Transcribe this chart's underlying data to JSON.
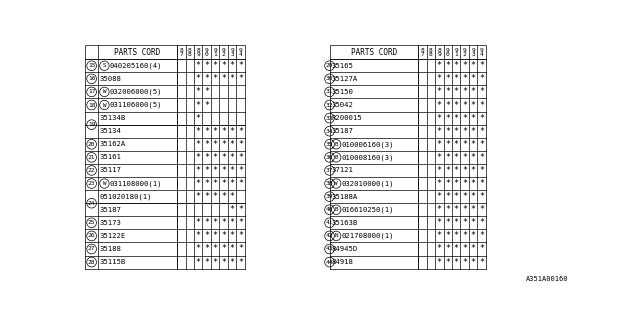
{
  "watermark": "A351A00160",
  "col_headers": [
    "87",
    "88",
    "89",
    "90",
    "91",
    "92",
    "93",
    "94"
  ],
  "left_table": {
    "has_num_col": true,
    "rows": [
      {
        "num": "15",
        "part": "S 040205160(4)",
        "part_prefix": "S",
        "marks": [
          false,
          false,
          true,
          true,
          true,
          true,
          true,
          true
        ]
      },
      {
        "num": "16",
        "part": "35088",
        "part_prefix": "",
        "marks": [
          false,
          false,
          true,
          true,
          true,
          true,
          true,
          true
        ]
      },
      {
        "num": "17",
        "part": "W 032006000(5)",
        "part_prefix": "W",
        "marks": [
          false,
          false,
          true,
          true,
          false,
          false,
          false,
          false
        ]
      },
      {
        "num": "18",
        "part": "W 031106000(5)",
        "part_prefix": "W",
        "marks": [
          false,
          false,
          true,
          true,
          false,
          false,
          false,
          false
        ]
      },
      {
        "num": "19",
        "part": "35134B",
        "part_prefix": "",
        "marks": [
          false,
          false,
          true,
          false,
          false,
          false,
          false,
          false
        ],
        "group_start": true
      },
      {
        "num": "",
        "part": "35134",
        "part_prefix": "",
        "marks": [
          false,
          false,
          true,
          true,
          true,
          true,
          true,
          true
        ],
        "group_end": true
      },
      {
        "num": "20",
        "part": "35162A",
        "part_prefix": "",
        "marks": [
          false,
          false,
          true,
          true,
          true,
          true,
          true,
          true
        ]
      },
      {
        "num": "21",
        "part": "35161",
        "part_prefix": "",
        "marks": [
          false,
          false,
          true,
          true,
          true,
          true,
          true,
          true
        ]
      },
      {
        "num": "22",
        "part": "35117",
        "part_prefix": "",
        "marks": [
          false,
          false,
          true,
          true,
          true,
          true,
          true,
          true
        ]
      },
      {
        "num": "23",
        "part": "W 031108000(1)",
        "part_prefix": "W",
        "marks": [
          false,
          false,
          true,
          true,
          true,
          true,
          true,
          true
        ]
      },
      {
        "num": "24",
        "part": "051020180(1)",
        "part_prefix": "",
        "marks": [
          false,
          false,
          true,
          true,
          true,
          true,
          true,
          false
        ],
        "group_start": true
      },
      {
        "num": "",
        "part": "35187",
        "part_prefix": "",
        "marks": [
          false,
          false,
          false,
          false,
          false,
          false,
          true,
          true
        ],
        "group_end": true
      },
      {
        "num": "25",
        "part": "35173",
        "part_prefix": "",
        "marks": [
          false,
          false,
          true,
          true,
          true,
          true,
          true,
          true
        ]
      },
      {
        "num": "26",
        "part": "35122E",
        "part_prefix": "",
        "marks": [
          false,
          false,
          true,
          true,
          true,
          true,
          true,
          true
        ]
      },
      {
        "num": "27",
        "part": "35188",
        "part_prefix": "",
        "marks": [
          false,
          false,
          true,
          true,
          true,
          true,
          true,
          true
        ]
      },
      {
        "num": "28",
        "part": "35115B",
        "part_prefix": "",
        "marks": [
          false,
          false,
          true,
          true,
          true,
          true,
          true,
          true
        ]
      }
    ]
  },
  "right_table": {
    "has_num_col": false,
    "rows": [
      {
        "num": "29",
        "part": "35165",
        "part_prefix": "",
        "marks": [
          false,
          false,
          true,
          true,
          true,
          true,
          true,
          true
        ]
      },
      {
        "num": "30",
        "part": "35127A",
        "part_prefix": "",
        "marks": [
          false,
          false,
          true,
          true,
          true,
          true,
          true,
          true
        ]
      },
      {
        "num": "31",
        "part": "35150",
        "part_prefix": "",
        "marks": [
          false,
          false,
          true,
          true,
          true,
          true,
          true,
          true
        ]
      },
      {
        "num": "32",
        "part": "35042",
        "part_prefix": "",
        "marks": [
          false,
          false,
          true,
          true,
          true,
          true,
          true,
          true
        ]
      },
      {
        "num": "33",
        "part": "R200015",
        "part_prefix": "",
        "marks": [
          false,
          false,
          true,
          true,
          true,
          true,
          true,
          true
        ]
      },
      {
        "num": "34",
        "part": "35187",
        "part_prefix": "",
        "marks": [
          false,
          false,
          true,
          true,
          true,
          true,
          true,
          true
        ]
      },
      {
        "num": "35",
        "part": "B 010006160(3)",
        "part_prefix": "B",
        "marks": [
          false,
          false,
          true,
          true,
          true,
          true,
          true,
          true
        ]
      },
      {
        "num": "36",
        "part": "B 010008160(3)",
        "part_prefix": "B",
        "marks": [
          false,
          false,
          true,
          true,
          true,
          true,
          true,
          true
        ]
      },
      {
        "num": "37",
        "part": "37121",
        "part_prefix": "",
        "marks": [
          false,
          false,
          true,
          true,
          true,
          true,
          true,
          true
        ]
      },
      {
        "num": "38",
        "part": "W 032010000(1)",
        "part_prefix": "W",
        "marks": [
          false,
          false,
          true,
          true,
          true,
          true,
          true,
          true
        ]
      },
      {
        "num": "39",
        "part": "35188A",
        "part_prefix": "",
        "marks": [
          false,
          false,
          true,
          true,
          true,
          true,
          true,
          true
        ]
      },
      {
        "num": "40",
        "part": "B 016610250(1)",
        "part_prefix": "B",
        "marks": [
          false,
          false,
          true,
          true,
          true,
          true,
          true,
          true
        ]
      },
      {
        "num": "41",
        "part": "35163B",
        "part_prefix": "",
        "marks": [
          false,
          false,
          true,
          true,
          true,
          true,
          true,
          true
        ]
      },
      {
        "num": "42",
        "part": "N 021708000(1)",
        "part_prefix": "N",
        "marks": [
          false,
          false,
          true,
          true,
          true,
          true,
          true,
          true
        ]
      },
      {
        "num": "43",
        "part": "84945D",
        "part_prefix": "",
        "marks": [
          false,
          false,
          true,
          true,
          true,
          true,
          true,
          true
        ]
      },
      {
        "num": "44",
        "part": "84918",
        "part_prefix": "",
        "marks": [
          false,
          false,
          true,
          true,
          true,
          true,
          true,
          true
        ]
      }
    ]
  },
  "bg_color": "#ffffff",
  "line_color": "#000000",
  "text_color": "#000000",
  "mark_symbol": "*"
}
